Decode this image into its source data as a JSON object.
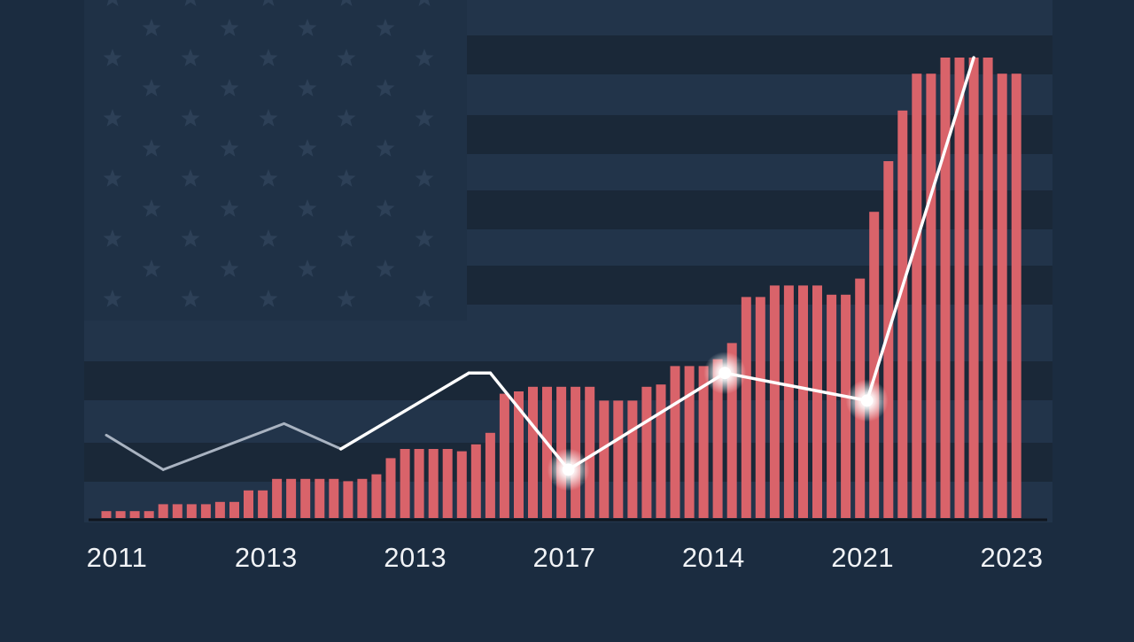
{
  "chart_data": {
    "type": "bar",
    "title": "",
    "xlabel": "",
    "ylabel": "",
    "x_tick_labels": [
      "2011",
      "2013",
      "2013",
      "2017",
      "2014",
      "2021",
      "2023"
    ],
    "ylim": [
      0,
      100
    ],
    "grid": false,
    "legend": "none",
    "bars": {
      "color": "#d9636a",
      "values": [
        1.5,
        1.5,
        1.5,
        1.5,
        3,
        3,
        3,
        3,
        3.5,
        3.5,
        6,
        6,
        8.5,
        8.5,
        8.5,
        8.5,
        8.5,
        8,
        8.5,
        9.5,
        13,
        15,
        15,
        15,
        15,
        14.5,
        16,
        18.5,
        27,
        27.5,
        28.5,
        28.5,
        28.5,
        28.5,
        28.5,
        25.5,
        25.5,
        25.5,
        28.5,
        29,
        33,
        33,
        33,
        34.5,
        38,
        48,
        48,
        50.5,
        50.5,
        50.5,
        50.5,
        48.5,
        48.5,
        52,
        66.5,
        77.5,
        88.5,
        96.5,
        96.5,
        100,
        100,
        100,
        100,
        96.5,
        96.5
      ]
    },
    "line": {
      "color": "#ffffff",
      "faded_color": "#a9b3c1",
      "points": [
        {
          "x": 0,
          "y": 18
        },
        {
          "x": 4,
          "y": 10.5
        },
        {
          "x": 12.5,
          "y": 20.5
        },
        {
          "x": 16.5,
          "y": 15
        },
        {
          "x": 25.5,
          "y": 31.5
        },
        {
          "x": 27,
          "y": 31.5
        },
        {
          "x": 32.5,
          "y": 10.5
        },
        {
          "x": 43.5,
          "y": 31.5
        },
        {
          "x": 53.5,
          "y": 25.5
        },
        {
          "x": 61,
          "y": 100
        }
      ],
      "highlighted_points": [
        6,
        7,
        8
      ]
    },
    "background": {
      "field": "#22344a",
      "stripe": "#1a2838",
      "canton": "#1f3146",
      "star": "#2d4057"
    }
  }
}
